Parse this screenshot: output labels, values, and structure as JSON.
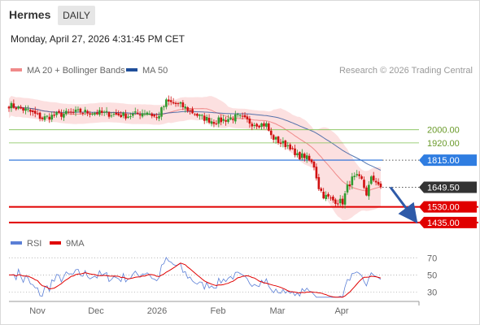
{
  "header": {
    "symbol": "Hermes",
    "timeframe": "DAILY",
    "datetime": "Monday, April 27, 2026 4:31:45 PM CET"
  },
  "price_panel": {
    "legend": [
      {
        "label": "MA 20 + Bollinger Bands",
        "color": "#f08a8a"
      },
      {
        "label": "MA 50",
        "color": "#1f4e9a"
      }
    ],
    "copyright": "Research © 2026 Trading Central"
  },
  "rsi_panel": {
    "legend": [
      {
        "label": "RSI",
        "color": "#5b7fd6"
      },
      {
        "label": "9MA",
        "color": "#e00000"
      }
    ]
  },
  "colors": {
    "up_candle": "#2e9a2e",
    "down_candle": "#d01010",
    "band_fill": "#fbdada",
    "support_line": "#e00000",
    "resistance_line": "#7fbf50",
    "pivot_line": "#1f6ad8",
    "pivot_label_bg": "#2f7de1",
    "support_label_bg": "#e00000",
    "current_label_bg": "#333333",
    "arrow": "#2e5aa8"
  },
  "chart_data": [
    {
      "type": "candlestick",
      "title": "Hermes",
      "x_tick_labels": [
        "Nov",
        "Dec",
        "2026",
        "Feb",
        "Mar",
        "Apr"
      ],
      "ylim": [
        1380,
        2320
      ],
      "current_price": 1649.5,
      "levels": [
        {
          "value": 2000.0,
          "label": "2000.00",
          "kind": "resistance"
        },
        {
          "value": 1920.0,
          "label": "1920.00",
          "kind": "resistance"
        },
        {
          "value": 1815.0,
          "label": "1815.00",
          "kind": "pivot"
        },
        {
          "value": 1649.5,
          "label": "1649.50",
          "kind": "current"
        },
        {
          "value": 1530.0,
          "label": "1530.00",
          "kind": "support"
        },
        {
          "value": 1435.0,
          "label": "1435.00",
          "kind": "support"
        }
      ],
      "forecast_arrow": {
        "from": 1649.5,
        "to": 1435.0
      },
      "series": [
        {
          "name": "MA 20 + Bollinger Bands"
        },
        {
          "name": "MA 50"
        }
      ]
    },
    {
      "type": "line",
      "title": "RSI",
      "ylim": [
        20,
        75
      ],
      "y_tick_labels": [
        "70",
        "50",
        "30"
      ],
      "y_ticks": [
        70,
        50,
        30
      ],
      "series": [
        {
          "name": "RSI"
        },
        {
          "name": "9MA"
        }
      ]
    }
  ]
}
